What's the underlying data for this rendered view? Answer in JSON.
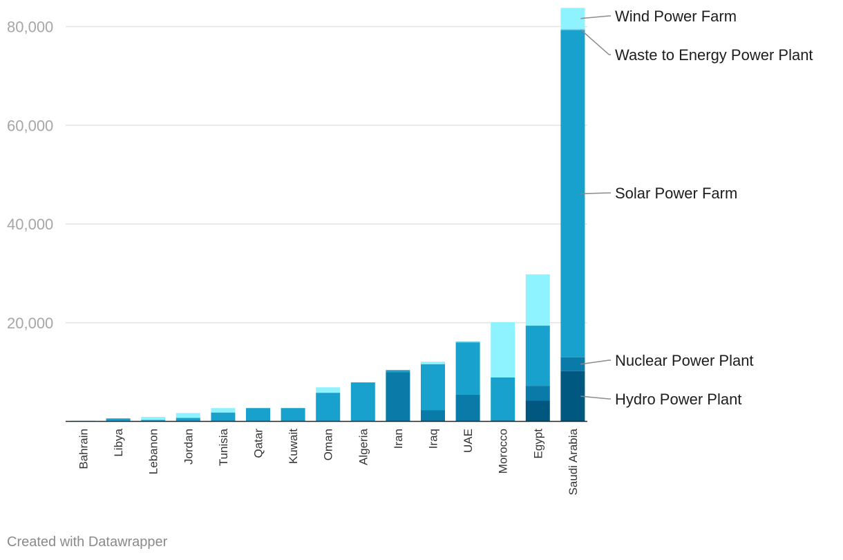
{
  "chart_data": {
    "type": "bar",
    "stacked": true,
    "orientation": "vertical",
    "categories": [
      "Bahrain",
      "Libya",
      "Lebanon",
      "Jordan",
      "Tunisia",
      "Qatar",
      "Kuwait",
      "Oman",
      "Algeria",
      "Iran",
      "Iraq",
      "UAE",
      "Morocco",
      "Egypt",
      "Saudi Arabia"
    ],
    "series": [
      {
        "name": "Hydro Power Plant",
        "color": "#00577f",
        "values": [
          0,
          0,
          0,
          0,
          0,
          0,
          0,
          0,
          0,
          0,
          0,
          0,
          0,
          4200,
          10200
        ]
      },
      {
        "name": "Nuclear Power Plant",
        "color": "#0a7aa8",
        "values": [
          0,
          0,
          0,
          0,
          0,
          0,
          0,
          0,
          0,
          10000,
          2300,
          5400,
          200,
          3000,
          2800
        ]
      },
      {
        "name": "Solar Power Farm",
        "color": "#18a1cd",
        "values": [
          100,
          600,
          300,
          700,
          1800,
          2700,
          2700,
          5800,
          7900,
          400,
          9300,
          10600,
          8700,
          12200,
          66300
        ]
      },
      {
        "name": "Waste to Energy Power Plant",
        "color": "#6acde6",
        "values": [
          0,
          0,
          0,
          0,
          0,
          0,
          0,
          0,
          0,
          0,
          0,
          200,
          0,
          0,
          200
        ]
      },
      {
        "name": "Wind Power Farm",
        "color": "#8ef3ff",
        "values": [
          0,
          0,
          600,
          1000,
          900,
          0,
          0,
          1100,
          0,
          0,
          500,
          0,
          11200,
          10400,
          4300
        ]
      }
    ],
    "yticks": [
      20000,
      40000,
      60000,
      80000
    ],
    "ytick_labels": [
      "20,000",
      "40,000",
      "60,000",
      "80,000"
    ],
    "ylim": [
      0,
      84000
    ],
    "grid": true,
    "legend_placement": "right, labels attached to the Saudi Arabia bar"
  },
  "credit": "Created with Datawrapper"
}
